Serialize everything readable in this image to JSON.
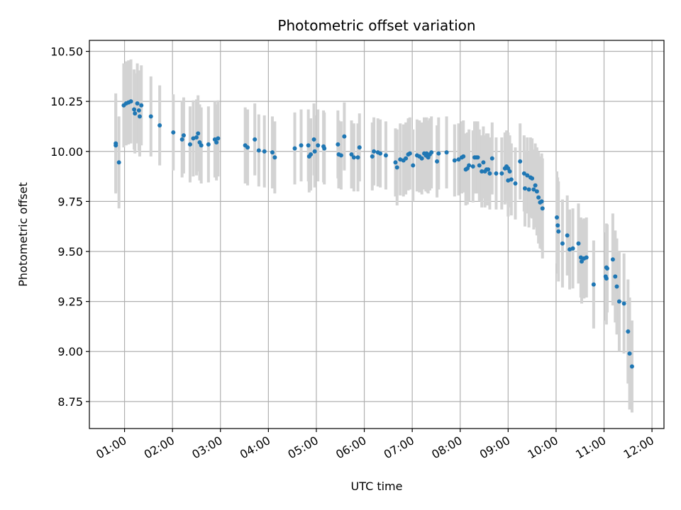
{
  "chart_data": {
    "type": "scatter",
    "title": "Photometric offset variation",
    "xlabel": "UTC time",
    "ylabel": "Photometric offset",
    "x_ticks": [
      "01:00",
      "02:00",
      "03:00",
      "04:00",
      "05:00",
      "06:00",
      "07:00",
      "08:00",
      "09:00",
      "10:00",
      "11:00",
      "12:00"
    ],
    "y_ticks": [
      "8.75",
      "9.00",
      "9.25",
      "9.50",
      "9.75",
      "10.00",
      "10.25",
      "10.50"
    ],
    "xlim": [
      "00:16",
      "12:15"
    ],
    "ylim": [
      8.615,
      10.555
    ],
    "grid": true,
    "colors": {
      "point": "#1f77b4",
      "errorbar": "#d3d3d3",
      "grid": "#b0b0b0"
    },
    "series": [
      {
        "points": [
          {
            "x": "00:49",
            "y": 10.04,
            "err": 0.25
          },
          {
            "x": "00:49",
            "y": 10.03,
            "err": 0.23
          },
          {
            "x": "00:53",
            "y": 9.945,
            "err": 0.23
          },
          {
            "x": "00:59",
            "y": 10.23,
            "err": 0.21
          },
          {
            "x": "01:02",
            "y": 10.24,
            "err": 0.21
          },
          {
            "x": "01:05",
            "y": 10.245,
            "err": 0.21
          },
          {
            "x": "01:08",
            "y": 10.25,
            "err": 0.21
          },
          {
            "x": "01:12",
            "y": 10.21,
            "err": 0.2
          },
          {
            "x": "01:13",
            "y": 10.19,
            "err": 0.2
          },
          {
            "x": "01:16",
            "y": 10.24,
            "err": 0.2
          },
          {
            "x": "01:18",
            "y": 10.205,
            "err": 0.2
          },
          {
            "x": "01:19",
            "y": 10.175,
            "err": 0.2
          },
          {
            "x": "01:21",
            "y": 10.23,
            "err": 0.2
          },
          {
            "x": "01:33",
            "y": 10.175,
            "err": 0.2
          },
          {
            "x": "01:44",
            "y": 10.13,
            "err": 0.2
          },
          {
            "x": "02:01",
            "y": 10.095,
            "err": 0.19
          },
          {
            "x": "02:12",
            "y": 10.06,
            "err": 0.19
          },
          {
            "x": "02:14",
            "y": 10.08,
            "err": 0.19
          },
          {
            "x": "02:22",
            "y": 10.035,
            "err": 0.19
          },
          {
            "x": "02:26",
            "y": 10.065,
            "err": 0.19
          },
          {
            "x": "02:30",
            "y": 10.07,
            "err": 0.19
          },
          {
            "x": "02:32",
            "y": 10.09,
            "err": 0.19
          },
          {
            "x": "02:34",
            "y": 10.045,
            "err": 0.19
          },
          {
            "x": "02:36",
            "y": 10.03,
            "err": 0.19
          },
          {
            "x": "02:45",
            "y": 10.035,
            "err": 0.19
          },
          {
            "x": "02:53",
            "y": 10.06,
            "err": 0.19
          },
          {
            "x": "02:55",
            "y": 10.045,
            "err": 0.19
          },
          {
            "x": "02:57",
            "y": 10.065,
            "err": 0.19
          },
          {
            "x": "03:31",
            "y": 10.03,
            "err": 0.19
          },
          {
            "x": "03:34",
            "y": 10.02,
            "err": 0.19
          },
          {
            "x": "03:43",
            "y": 10.06,
            "err": 0.18
          },
          {
            "x": "03:48",
            "y": 10.005,
            "err": 0.18
          },
          {
            "x": "03:55",
            "y": 10.0,
            "err": 0.18
          },
          {
            "x": "04:05",
            "y": 9.995,
            "err": 0.18
          },
          {
            "x": "04:08",
            "y": 9.97,
            "err": 0.18
          },
          {
            "x": "04:33",
            "y": 10.015,
            "err": 0.18
          },
          {
            "x": "04:41",
            "y": 10.03,
            "err": 0.18
          },
          {
            "x": "04:50",
            "y": 10.03,
            "err": 0.18
          },
          {
            "x": "04:51",
            "y": 9.975,
            "err": 0.18
          },
          {
            "x": "04:53",
            "y": 9.985,
            "err": 0.18
          },
          {
            "x": "04:57",
            "y": 10.06,
            "err": 0.18
          },
          {
            "x": "04:58",
            "y": 10.0,
            "err": 0.18
          },
          {
            "x": "05:02",
            "y": 10.03,
            "err": 0.18
          },
          {
            "x": "05:09",
            "y": 10.025,
            "err": 0.18
          },
          {
            "x": "05:10",
            "y": 10.015,
            "err": 0.18
          },
          {
            "x": "05:27",
            "y": 10.035,
            "err": 0.17
          },
          {
            "x": "05:28",
            "y": 9.985,
            "err": 0.17
          },
          {
            "x": "05:31",
            "y": 9.98,
            "err": 0.17
          },
          {
            "x": "05:35",
            "y": 10.075,
            "err": 0.17
          },
          {
            "x": "05:44",
            "y": 9.985,
            "err": 0.17
          },
          {
            "x": "05:47",
            "y": 9.97,
            "err": 0.17
          },
          {
            "x": "05:52",
            "y": 9.97,
            "err": 0.17
          },
          {
            "x": "05:54",
            "y": 10.02,
            "err": 0.17
          },
          {
            "x": "06:10",
            "y": 9.975,
            "err": 0.17
          },
          {
            "x": "06:12",
            "y": 10.0,
            "err": 0.17
          },
          {
            "x": "06:17",
            "y": 9.995,
            "err": 0.17
          },
          {
            "x": "06:20",
            "y": 9.99,
            "err": 0.17
          },
          {
            "x": "06:27",
            "y": 9.98,
            "err": 0.17
          },
          {
            "x": "06:39",
            "y": 9.945,
            "err": 0.17
          },
          {
            "x": "06:41",
            "y": 9.92,
            "err": 0.19
          },
          {
            "x": "06:45",
            "y": 9.96,
            "err": 0.18
          },
          {
            "x": "06:49",
            "y": 9.955,
            "err": 0.18
          },
          {
            "x": "06:52",
            "y": 9.965,
            "err": 0.18
          },
          {
            "x": "06:55",
            "y": 9.985,
            "err": 0.18
          },
          {
            "x": "06:57",
            "y": 9.99,
            "err": 0.18
          },
          {
            "x": "07:01",
            "y": 9.93,
            "err": 0.18
          },
          {
            "x": "07:06",
            "y": 9.98,
            "err": 0.18
          },
          {
            "x": "07:09",
            "y": 9.975,
            "err": 0.18
          },
          {
            "x": "07:12",
            "y": 9.965,
            "err": 0.18
          },
          {
            "x": "07:15",
            "y": 9.99,
            "err": 0.18
          },
          {
            "x": "07:17",
            "y": 9.98,
            "err": 0.18
          },
          {
            "x": "07:18",
            "y": 9.99,
            "err": 0.18
          },
          {
            "x": "07:19",
            "y": 9.975,
            "err": 0.18
          },
          {
            "x": "07:20",
            "y": 9.97,
            "err": 0.18
          },
          {
            "x": "07:22",
            "y": 9.985,
            "err": 0.18
          },
          {
            "x": "07:24",
            "y": 9.995,
            "err": 0.18
          },
          {
            "x": "07:31",
            "y": 9.95,
            "err": 0.18
          },
          {
            "x": "07:33",
            "y": 9.99,
            "err": 0.18
          },
          {
            "x": "07:43",
            "y": 9.995,
            "err": 0.18
          },
          {
            "x": "07:53",
            "y": 9.955,
            "err": 0.18
          },
          {
            "x": "07:58",
            "y": 9.96,
            "err": 0.18
          },
          {
            "x": "08:02",
            "y": 9.97,
            "err": 0.18
          },
          {
            "x": "08:04",
            "y": 9.975,
            "err": 0.18
          },
          {
            "x": "08:07",
            "y": 9.91,
            "err": 0.18
          },
          {
            "x": "08:09",
            "y": 9.915,
            "err": 0.18
          },
          {
            "x": "08:11",
            "y": 9.93,
            "err": 0.18
          },
          {
            "x": "08:16",
            "y": 9.925,
            "err": 0.18
          },
          {
            "x": "08:18",
            "y": 9.97,
            "err": 0.18
          },
          {
            "x": "08:20",
            "y": 9.97,
            "err": 0.18
          },
          {
            "x": "08:22",
            "y": 9.97,
            "err": 0.18
          },
          {
            "x": "08:24",
            "y": 9.93,
            "err": 0.18
          },
          {
            "x": "08:27",
            "y": 9.9,
            "err": 0.18
          },
          {
            "x": "08:29",
            "y": 9.945,
            "err": 0.18
          },
          {
            "x": "08:31",
            "y": 9.9,
            "err": 0.18
          },
          {
            "x": "08:33",
            "y": 9.91,
            "err": 0.18
          },
          {
            "x": "08:35",
            "y": 9.91,
            "err": 0.18
          },
          {
            "x": "08:37",
            "y": 9.89,
            "err": 0.18
          },
          {
            "x": "08:40",
            "y": 9.965,
            "err": 0.18
          },
          {
            "x": "08:45",
            "y": 9.89,
            "err": 0.18
          },
          {
            "x": "08:52",
            "y": 9.89,
            "err": 0.18
          },
          {
            "x": "08:56",
            "y": 9.915,
            "err": 0.18
          },
          {
            "x": "08:58",
            "y": 9.925,
            "err": 0.18
          },
          {
            "x": "09:00",
            "y": 9.915,
            "err": 0.18
          },
          {
            "x": "09:00",
            "y": 9.855,
            "err": 0.18
          },
          {
            "x": "09:02",
            "y": 9.9,
            "err": 0.18
          },
          {
            "x": "09:04",
            "y": 9.86,
            "err": 0.18
          },
          {
            "x": "09:09",
            "y": 9.84,
            "err": 0.18
          },
          {
            "x": "09:15",
            "y": 9.95,
            "err": 0.19
          },
          {
            "x": "09:20",
            "y": 9.89,
            "err": 0.19
          },
          {
            "x": "09:21",
            "y": 9.815,
            "err": 0.19
          },
          {
            "x": "09:24",
            "y": 9.88,
            "err": 0.19
          },
          {
            "x": "09:26",
            "y": 9.81,
            "err": 0.19
          },
          {
            "x": "09:28",
            "y": 9.87,
            "err": 0.2
          },
          {
            "x": "09:30",
            "y": 9.865,
            "err": 0.2
          },
          {
            "x": "09:32",
            "y": 9.81,
            "err": 0.2
          },
          {
            "x": "09:34",
            "y": 9.83,
            "err": 0.21
          },
          {
            "x": "09:36",
            "y": 9.8,
            "err": 0.22
          },
          {
            "x": "09:38",
            "y": 9.77,
            "err": 0.23
          },
          {
            "x": "09:40",
            "y": 9.745,
            "err": 0.23
          },
          {
            "x": "09:42",
            "y": 9.75,
            "err": 0.24
          },
          {
            "x": "09:43",
            "y": 9.715,
            "err": 0.25
          },
          {
            "x": "10:01",
            "y": 9.67,
            "err": 0.23
          },
          {
            "x": "10:02",
            "y": 9.63,
            "err": 0.24
          },
          {
            "x": "10:03",
            "y": 9.6,
            "err": 0.25
          },
          {
            "x": "10:08",
            "y": 9.54,
            "err": 0.22
          },
          {
            "x": "10:14",
            "y": 9.58,
            "err": 0.2
          },
          {
            "x": "10:17",
            "y": 9.51,
            "err": 0.2
          },
          {
            "x": "10:21",
            "y": 9.515,
            "err": 0.2
          },
          {
            "x": "10:28",
            "y": 9.54,
            "err": 0.2
          },
          {
            "x": "10:31",
            "y": 9.47,
            "err": 0.2
          },
          {
            "x": "10:32",
            "y": 9.45,
            "err": 0.21
          },
          {
            "x": "10:35",
            "y": 9.465,
            "err": 0.2
          },
          {
            "x": "10:38",
            "y": 9.47,
            "err": 0.2
          },
          {
            "x": "10:47",
            "y": 9.335,
            "err": 0.22
          },
          {
            "x": "11:02",
            "y": 9.375,
            "err": 0.22
          },
          {
            "x": "11:03",
            "y": 9.42,
            "err": 0.22
          },
          {
            "x": "11:04",
            "y": 9.415,
            "err": 0.22
          },
          {
            "x": "11:03",
            "y": 9.365,
            "err": 0.23
          },
          {
            "x": "11:11",
            "y": 9.46,
            "err": 0.23
          },
          {
            "x": "11:14",
            "y": 9.375,
            "err": 0.23
          },
          {
            "x": "11:16",
            "y": 9.325,
            "err": 0.24
          },
          {
            "x": "11:19",
            "y": 9.25,
            "err": 0.25
          },
          {
            "x": "11:25",
            "y": 9.24,
            "err": 0.25
          },
          {
            "x": "11:30",
            "y": 9.1,
            "err": 0.26
          },
          {
            "x": "11:32",
            "y": 8.99,
            "err": 0.28
          },
          {
            "x": "11:35",
            "y": 8.925,
            "err": 0.23
          }
        ]
      }
    ]
  }
}
